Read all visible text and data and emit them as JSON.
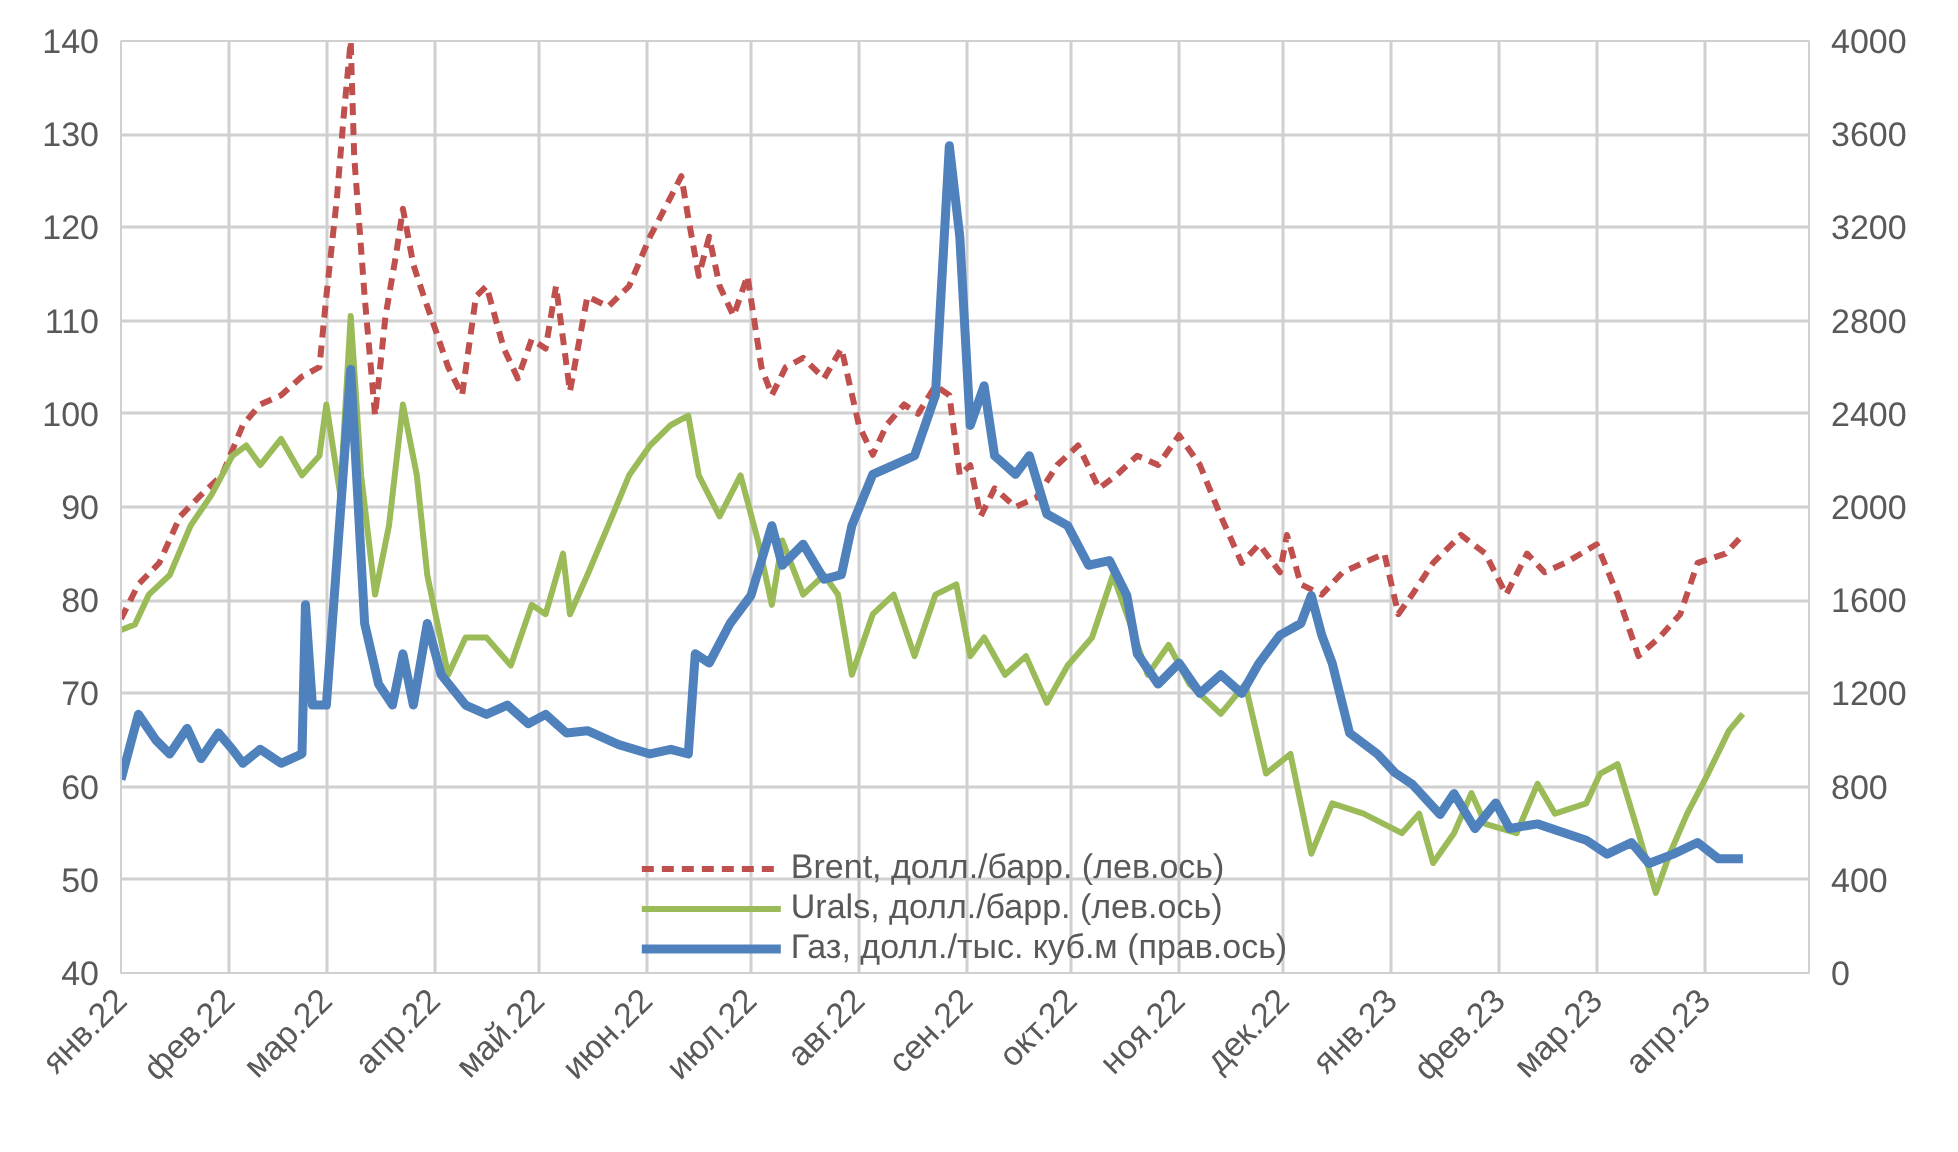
{
  "chart_data": {
    "type": "line",
    "xlim": [
      "2022-01-01",
      "2023-05-01"
    ],
    "xticks": [
      {
        "value": "2022-01-01",
        "label": "янв.22"
      },
      {
        "value": "2022-02-01",
        "label": "фев.22"
      },
      {
        "value": "2022-03-01",
        "label": "мар.22"
      },
      {
        "value": "2022-04-01",
        "label": "апр.22"
      },
      {
        "value": "2022-05-01",
        "label": "май.22"
      },
      {
        "value": "2022-06-01",
        "label": "июн.22"
      },
      {
        "value": "2022-07-01",
        "label": "июл.22"
      },
      {
        "value": "2022-08-01",
        "label": "авг.22"
      },
      {
        "value": "2022-09-01",
        "label": "сен.22"
      },
      {
        "value": "2022-10-01",
        "label": "окт.22"
      },
      {
        "value": "2022-11-01",
        "label": "ноя.22"
      },
      {
        "value": "2022-12-01",
        "label": "дек.22"
      },
      {
        "value": "2023-01-01",
        "label": "янв.23"
      },
      {
        "value": "2023-02-01",
        "label": "фев.23"
      },
      {
        "value": "2023-03-01",
        "label": "мар.23"
      },
      {
        "value": "2023-04-01",
        "label": "апр.23"
      },
      {
        "value": "2023-05-01",
        "label": null
      }
    ],
    "ylim": [
      40,
      140
    ],
    "yticks": [
      40,
      50,
      60,
      70,
      80,
      90,
      100,
      110,
      120,
      130,
      140
    ],
    "y2lim": [
      0,
      4000
    ],
    "y2ticks": [
      0,
      400,
      800,
      1200,
      1600,
      2000,
      2400,
      2800,
      3200,
      3600,
      4000
    ],
    "grid": true,
    "legend": "bottom",
    "series": [
      {
        "name": "Brent, долл./барр. (лев.ось)",
        "color": "#c0504d",
        "line_style": "dashed",
        "x": [
          "2022-01-01",
          "2022-01-06",
          "2022-01-12",
          "2022-01-18",
          "2022-01-24",
          "2022-01-30",
          "2022-02-05",
          "2022-02-10",
          "2022-02-16",
          "2022-02-22",
          "2022-02-27",
          "2022-03-01",
          "2022-03-04",
          "2022-03-06",
          "2022-03-08",
          "2022-03-09",
          "2022-03-12",
          "2022-03-15",
          "2022-03-18",
          "2022-03-21",
          "2022-03-23",
          "2022-03-26",
          "2022-03-29",
          "2022-04-01",
          "2022-04-05",
          "2022-04-09",
          "2022-04-13",
          "2022-04-16",
          "2022-04-21",
          "2022-04-25",
          "2022-04-29",
          "2022-05-03",
          "2022-05-06",
          "2022-05-10",
          "2022-05-15",
          "2022-05-21",
          "2022-05-27",
          "2022-06-02",
          "2022-06-08",
          "2022-06-11",
          "2022-06-13",
          "2022-06-16",
          "2022-06-19",
          "2022-06-22",
          "2022-06-26",
          "2022-06-30",
          "2022-07-04",
          "2022-07-07",
          "2022-07-11",
          "2022-07-16",
          "2022-07-22",
          "2022-07-27",
          "2022-08-01",
          "2022-08-05",
          "2022-08-09",
          "2022-08-14",
          "2022-08-18",
          "2022-08-23",
          "2022-08-27",
          "2022-08-30",
          "2022-09-02",
          "2022-09-05",
          "2022-09-09",
          "2022-09-15",
          "2022-09-21",
          "2022-09-27",
          "2022-10-03",
          "2022-10-09",
          "2022-10-14",
          "2022-10-20",
          "2022-10-26",
          "2022-11-01",
          "2022-11-07",
          "2022-11-13",
          "2022-11-19",
          "2022-11-24",
          "2022-11-30",
          "2022-12-02",
          "2022-12-06",
          "2022-12-12",
          "2022-12-18",
          "2022-12-24",
          "2022-12-30",
          "2023-01-03",
          "2023-01-07",
          "2023-01-13",
          "2023-01-21",
          "2023-01-28",
          "2023-02-03",
          "2023-02-09",
          "2023-02-14",
          "2023-02-20",
          "2023-03-01",
          "2023-03-07",
          "2023-03-13",
          "2023-03-19",
          "2023-03-25",
          "2023-03-30",
          "2023-04-07",
          "2023-04-12"
        ],
        "values": [
          78,
          81.7,
          84,
          89,
          91.3,
          93.4,
          98.8,
          101,
          102,
          104,
          105,
          112.6,
          123,
          132,
          140,
          127.6,
          112.6,
          99.8,
          110.5,
          117,
          122,
          116,
          112.6,
          109.4,
          105,
          102,
          112.6,
          113.7,
          107,
          103.8,
          108,
          107,
          113.7,
          102.4,
          112.6,
          111.5,
          113.7,
          119,
          123.3,
          125.5,
          121,
          114.8,
          119,
          113.7,
          110.5,
          114.8,
          105,
          102,
          105,
          106,
          103.8,
          107,
          98.8,
          95.6,
          98.8,
          101,
          100,
          103,
          102,
          93.4,
          94.5,
          89,
          92,
          90,
          91,
          94.5,
          96.6,
          92,
          93.4,
          95.5,
          94.5,
          97.7,
          94.5,
          89,
          84,
          86,
          83,
          87,
          81.7,
          80.6,
          83,
          84,
          85,
          78.5,
          80.6,
          84,
          87,
          85,
          80.6,
          85,
          83,
          84,
          86,
          80.6,
          74,
          76,
          78.5,
          84,
          85,
          87
        ]
      },
      {
        "name": "Urals, долл./барр. (лев.ось)",
        "color": "#9bbb59",
        "line_style": "solid",
        "x": [
          "2022-01-01",
          "2022-01-05",
          "2022-01-09",
          "2022-01-15",
          "2022-01-21",
          "2022-01-27",
          "2022-02-02",
          "2022-02-06",
          "2022-02-10",
          "2022-02-16",
          "2022-02-22",
          "2022-02-27",
          "2022-03-01",
          "2022-03-05",
          "2022-03-08",
          "2022-03-11",
          "2022-03-15",
          "2022-03-19",
          "2022-03-23",
          "2022-03-27",
          "2022-03-30",
          "2022-04-05",
          "2022-04-10",
          "2022-04-16",
          "2022-04-23",
          "2022-04-29",
          "2022-05-03",
          "2022-05-08",
          "2022-05-10",
          "2022-05-15",
          "2022-05-21",
          "2022-05-27",
          "2022-06-02",
          "2022-06-08",
          "2022-06-13",
          "2022-06-16",
          "2022-06-22",
          "2022-06-28",
          "2022-07-03",
          "2022-07-07",
          "2022-07-10",
          "2022-07-16",
          "2022-07-22",
          "2022-07-26",
          "2022-07-30",
          "2022-08-05",
          "2022-08-11",
          "2022-08-17",
          "2022-08-23",
          "2022-08-29",
          "2022-09-02",
          "2022-09-06",
          "2022-09-12",
          "2022-09-18",
          "2022-09-24",
          "2022-09-30",
          "2022-10-07",
          "2022-10-13",
          "2022-10-17",
          "2022-10-23",
          "2022-10-29",
          "2022-11-04",
          "2022-11-13",
          "2022-11-20",
          "2022-11-26",
          "2022-12-03",
          "2022-12-09",
          "2022-12-15",
          "2022-12-24",
          "2023-01-04",
          "2023-01-09",
          "2023-01-13",
          "2023-01-19",
          "2023-01-24",
          "2023-01-28",
          "2023-02-06",
          "2023-02-12",
          "2023-02-17",
          "2023-02-26",
          "2023-03-02",
          "2023-03-07",
          "2023-03-13",
          "2023-03-18",
          "2023-03-22",
          "2023-03-27",
          "2023-04-02",
          "2023-04-08",
          "2023-04-12"
        ],
        "values": [
          76.8,
          77.4,
          80.6,
          82.7,
          88,
          91.3,
          95.5,
          96.6,
          94.5,
          97.3,
          93.4,
          95.5,
          101,
          91.3,
          110.5,
          93.4,
          80.6,
          88,
          101,
          93.4,
          82.7,
          72,
          76,
          76,
          73,
          79.5,
          78.5,
          85,
          78.5,
          82.7,
          88,
          93.4,
          96.6,
          98.8,
          99.8,
          93.4,
          89,
          93.4,
          86.4,
          79.5,
          86.4,
          80.6,
          82.7,
          80.6,
          72,
          78.5,
          80.6,
          74,
          80.6,
          81.7,
          74,
          76,
          72,
          74,
          69,
          73,
          76,
          82.7,
          78.5,
          72,
          75.2,
          71,
          67.8,
          71,
          61.4,
          63.5,
          52.8,
          58.2,
          57.1,
          55,
          57.1,
          51.8,
          55,
          59.3,
          56,
          55,
          60.3,
          57.1,
          58.2,
          61.4,
          62.4,
          55,
          48.6,
          52.8,
          57.1,
          61.4,
          66,
          67.8
        ]
      },
      {
        "name": "Газ, долл./тыс. куб.м (прав.ось)",
        "color": "#4f81bd",
        "line_style": "solid",
        "axis": "y2",
        "x": [
          "2022-01-01",
          "2022-01-06",
          "2022-01-11",
          "2022-01-15",
          "2022-01-20",
          "2022-01-24",
          "2022-01-29",
          "2022-02-02",
          "2022-02-05",
          "2022-02-10",
          "2022-02-16",
          "2022-02-22",
          "2022-02-23",
          "2022-02-25",
          "2022-03-01",
          "2022-03-05",
          "2022-03-08",
          "2022-03-10",
          "2022-03-12",
          "2022-03-16",
          "2022-03-20",
          "2022-03-23",
          "2022-03-26",
          "2022-03-30",
          "2022-04-03",
          "2022-04-10",
          "2022-04-16",
          "2022-04-22",
          "2022-04-28",
          "2022-05-03",
          "2022-05-09",
          "2022-05-15",
          "2022-05-24",
          "2022-06-02",
          "2022-06-08",
          "2022-06-13",
          "2022-06-15",
          "2022-06-19",
          "2022-06-25",
          "2022-07-01",
          "2022-07-07",
          "2022-07-10",
          "2022-07-16",
          "2022-07-22",
          "2022-07-27",
          "2022-07-30",
          "2022-08-05",
          "2022-08-11",
          "2022-08-17",
          "2022-08-23",
          "2022-08-27",
          "2022-08-30",
          "2022-09-02",
          "2022-09-06",
          "2022-09-09",
          "2022-09-15",
          "2022-09-19",
          "2022-09-24",
          "2022-09-30",
          "2022-10-06",
          "2022-10-12",
          "2022-10-17",
          "2022-10-20",
          "2022-10-26",
          "2022-11-01",
          "2022-11-07",
          "2022-11-13",
          "2022-11-19",
          "2022-11-24",
          "2022-11-30",
          "2022-12-06",
          "2022-12-09",
          "2022-12-12",
          "2022-12-15",
          "2022-12-20",
          "2022-12-28",
          "2023-01-02",
          "2023-01-07",
          "2023-01-15",
          "2023-01-19",
          "2023-01-25",
          "2023-01-31",
          "2023-02-04",
          "2023-02-12",
          "2023-02-20",
          "2023-02-26",
          "2023-03-04",
          "2023-03-11",
          "2023-03-16",
          "2023-03-23",
          "2023-03-30",
          "2023-04-05",
          "2023-04-12"
        ],
        "values": [
          830,
          1110,
          1000,
          940,
          1050,
          920,
          1030,
          960,
          900,
          960,
          900,
          940,
          1580,
          1150,
          1150,
          1970,
          2590,
          2050,
          1500,
          1240,
          1150,
          1370,
          1150,
          1500,
          1280,
          1150,
          1110,
          1150,
          1070,
          1110,
          1030,
          1040,
          980,
          940,
          960,
          940,
          1370,
          1330,
          1500,
          1620,
          1920,
          1750,
          1840,
          1690,
          1710,
          1920,
          2140,
          2180,
          2220,
          2480,
          3550,
          3160,
          2350,
          2520,
          2220,
          2140,
          2220,
          1970,
          1920,
          1750,
          1770,
          1620,
          1370,
          1240,
          1330,
          1200,
          1280,
          1200,
          1330,
          1450,
          1500,
          1620,
          1450,
          1330,
          1030,
          940,
          860,
          810,
          680,
          770,
          620,
          730,
          620,
          640,
          600,
          570,
          510,
          560,
          470,
          510,
          560,
          490,
          490
        ]
      }
    ]
  }
}
